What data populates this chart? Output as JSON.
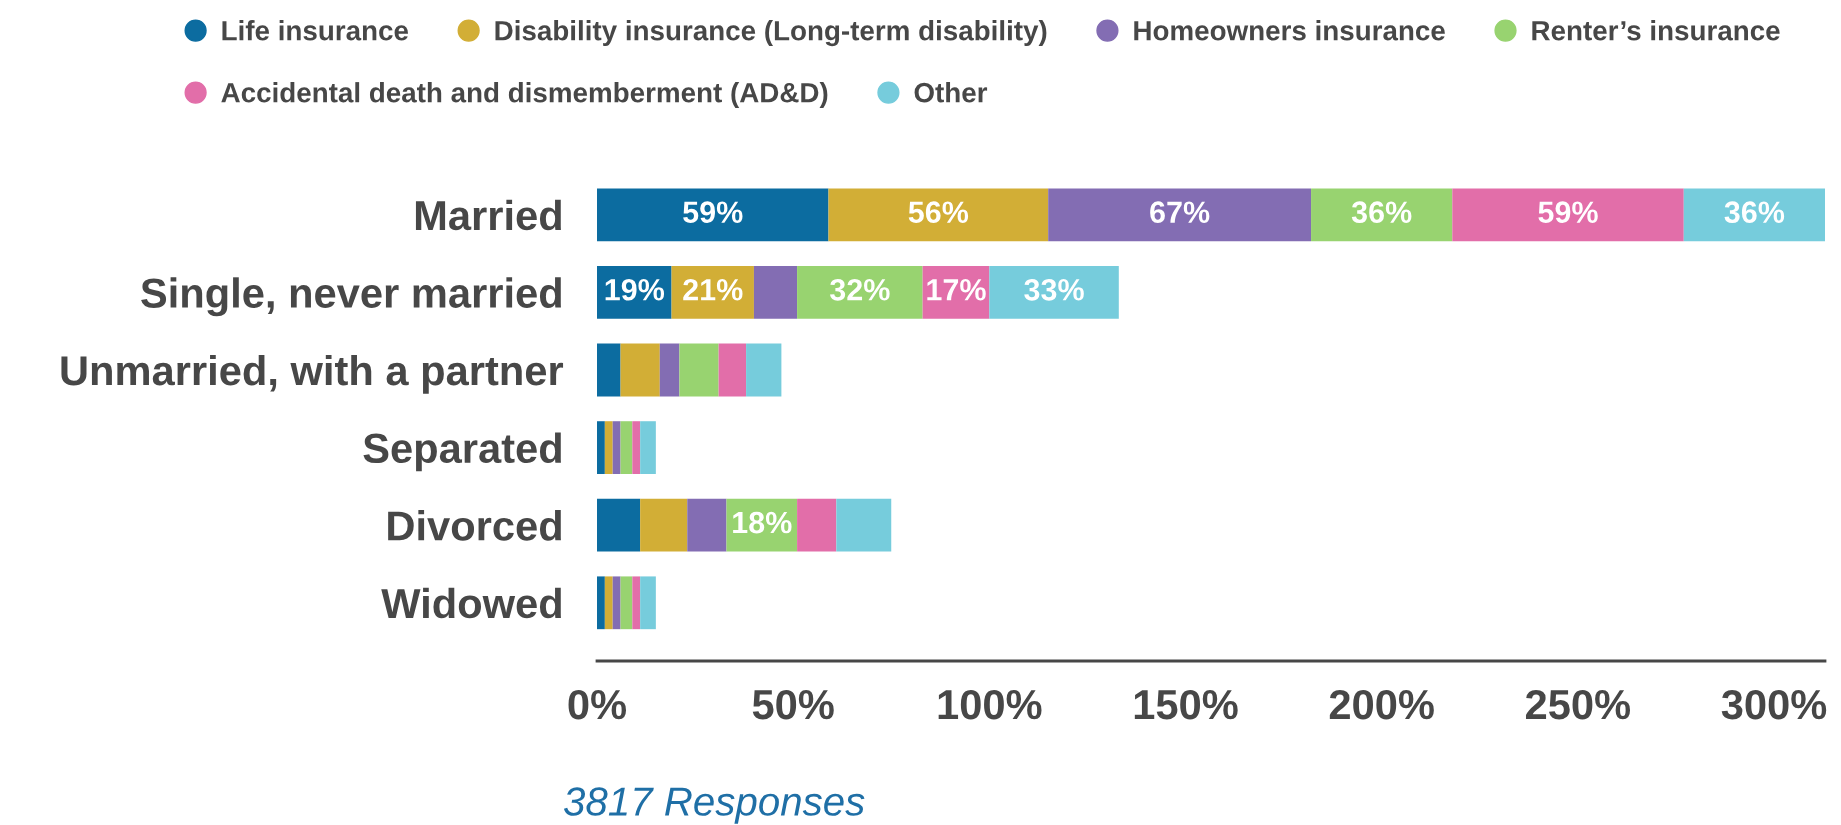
{
  "chart_data": {
    "type": "bar",
    "orientation": "horizontal",
    "stacked": true,
    "categories": [
      "Married",
      "Single, never married",
      "Unmarried, with a partner",
      "Separated",
      "Divorced",
      "Widowed"
    ],
    "series": [
      {
        "name": "Life insurance",
        "color": "#0c6ca0",
        "values": [
          59,
          19,
          6,
          2,
          11,
          2
        ],
        "value_labels": [
          "59%",
          "19%",
          null,
          null,
          null,
          null
        ]
      },
      {
        "name": "Disability insurance (Long-term disability)",
        "color": "#d2ae36",
        "values": [
          56,
          21,
          10,
          2,
          12,
          2
        ],
        "value_labels": [
          "56%",
          "21%",
          null,
          null,
          null,
          null
        ]
      },
      {
        "name": "Homeowners insurance",
        "color": "#836db3",
        "values": [
          67,
          11,
          5,
          2,
          10,
          2
        ],
        "value_labels": [
          "67%",
          null,
          null,
          null,
          null,
          null
        ]
      },
      {
        "name": "Renter’s insurance",
        "color": "#98d370",
        "values": [
          36,
          32,
          10,
          3,
          18,
          3
        ],
        "value_labels": [
          "36%",
          "32%",
          null,
          null,
          "18%",
          null
        ]
      },
      {
        "name": "Accidental death and dismemberment (AD&D)",
        "color": "#e26ea9",
        "values": [
          59,
          17,
          7,
          2,
          10,
          2
        ],
        "value_labels": [
          "59%",
          "17%",
          null,
          null,
          null,
          null
        ]
      },
      {
        "name": "Other",
        "color": "#76ccdc",
        "values": [
          36,
          33,
          9,
          4,
          14,
          4
        ],
        "value_labels": [
          "36%",
          "33%",
          null,
          null,
          null,
          null
        ]
      }
    ],
    "xlim": [
      0,
      313
    ],
    "xticks": [
      {
        "value": 0,
        "label": "0%"
      },
      {
        "value": 50,
        "label": "50%"
      },
      {
        "value": 100,
        "label": "100%"
      },
      {
        "value": 150,
        "label": "150%"
      },
      {
        "value": 200,
        "label": "200%"
      },
      {
        "value": 250,
        "label": "250%"
      },
      {
        "value": 300,
        "label": "300%"
      }
    ],
    "legend": "top",
    "grid": false,
    "annotations": [
      "3817 Responses"
    ]
  }
}
